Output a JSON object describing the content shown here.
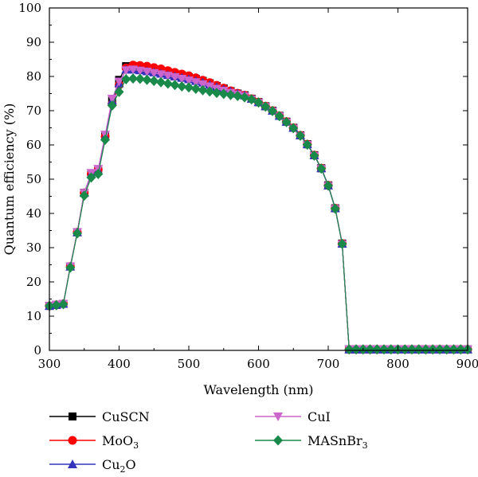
{
  "chart_data": {
    "type": "line",
    "xlabel": "Wavelength (nm)",
    "ylabel": "Quantum efficiency (%)",
    "xlim": [
      300,
      900
    ],
    "ylim": [
      0,
      100
    ],
    "x_ticks": [
      "300",
      "400",
      "500",
      "600",
      "700",
      "800",
      "900"
    ],
    "y_ticks": [
      "0",
      "10",
      "20",
      "30",
      "40",
      "50",
      "60",
      "70",
      "80",
      "90",
      "100"
    ],
    "grid": false,
    "legend_position": "bottom",
    "x": [
      300,
      310,
      320,
      330,
      340,
      350,
      360,
      370,
      380,
      390,
      400,
      410,
      420,
      430,
      440,
      450,
      460,
      470,
      480,
      490,
      500,
      510,
      520,
      530,
      540,
      550,
      560,
      570,
      580,
      590,
      600,
      610,
      620,
      630,
      640,
      650,
      660,
      670,
      680,
      690,
      700,
      710,
      720,
      730,
      740,
      750,
      760,
      770,
      780,
      790,
      800,
      810,
      820,
      830,
      840,
      850,
      860,
      870,
      880,
      890,
      900
    ],
    "series": [
      {
        "name": "CuSCN",
        "sub": "",
        "color": "#000000",
        "marker": "square",
        "values": [
          13,
          13.3,
          13.6,
          24.5,
          34.5,
          46,
          51.5,
          52.5,
          62.5,
          73,
          79,
          83,
          83,
          82.7,
          82.4,
          82.1,
          81.7,
          81.2,
          80.8,
          80.3,
          79.8,
          79.3,
          78.7,
          78,
          77.2,
          76.5,
          75.7,
          75,
          74.5,
          73.5,
          72.5,
          71.3,
          70,
          68.5,
          66.8,
          65,
          62.8,
          60.2,
          57,
          53.2,
          48.2,
          41.5,
          31.2,
          0.3,
          0.3,
          0.3,
          0.3,
          0.3,
          0.3,
          0.3,
          0.3,
          0.3,
          0.3,
          0.3,
          0.3,
          0.3,
          0.3,
          0.3,
          0.3,
          0.3,
          0.3
        ]
      },
      {
        "name": "MoO",
        "sub": "3",
        "color": "#ff0000",
        "marker": "circle",
        "values": [
          13,
          13.3,
          13.6,
          24.5,
          34.5,
          46,
          51.5,
          52.8,
          62.5,
          72,
          77.5,
          82.5,
          83.3,
          83.2,
          83,
          82.6,
          82.2,
          81.7,
          81.2,
          80.7,
          80.2,
          79.6,
          78.9,
          78.2,
          77.4,
          76.6,
          75.8,
          75.1,
          74.5,
          73.5,
          72.5,
          71.3,
          70,
          68.5,
          66.8,
          65,
          62.8,
          60.2,
          57,
          53.2,
          48.2,
          41.5,
          31.2,
          0.3,
          0.3,
          0.3,
          0.3,
          0.3,
          0.3,
          0.3,
          0.3,
          0.3,
          0.3,
          0.3,
          0.3,
          0.3,
          0.3,
          0.3,
          0.3,
          0.3,
          0.3
        ]
      },
      {
        "name": "Cu",
        "sub": "2",
        "after": "O",
        "color": "#3333bb",
        "marker": "triangle-up",
        "values": [
          13,
          13.3,
          13.6,
          24.5,
          34.5,
          46,
          51.5,
          52.5,
          62.5,
          73,
          78,
          82,
          82,
          81.8,
          81.5,
          81.2,
          80.8,
          80.4,
          80,
          79.6,
          79.2,
          78.7,
          78.2,
          77.6,
          76.9,
          76.2,
          75.6,
          75,
          74.5,
          73.5,
          72.5,
          71.3,
          70,
          68.5,
          66.8,
          65,
          62.8,
          60.2,
          57,
          53.2,
          48.2,
          41.5,
          31.2,
          0.3,
          0.3,
          0.3,
          0.3,
          0.3,
          0.3,
          0.3,
          0.3,
          0.3,
          0.3,
          0.3,
          0.3,
          0.3,
          0.3,
          0.3,
          0.3,
          0.3,
          0.3
        ]
      },
      {
        "name": "CuI",
        "sub": "",
        "color": "#cc66cc",
        "marker": "triangle-down",
        "values": [
          13,
          13.3,
          13.6,
          24.5,
          34.5,
          46,
          51.8,
          53,
          63,
          73.5,
          78.5,
          81.8,
          82,
          81.7,
          81.4,
          81,
          80.6,
          80.2,
          79.8,
          79.3,
          78.8,
          78.3,
          77.7,
          77.1,
          76.4,
          75.8,
          75.2,
          74.7,
          74.2,
          73.3,
          72.3,
          71.1,
          69.8,
          68.3,
          66.6,
          64.8,
          62.6,
          60,
          56.8,
          53,
          48,
          41.3,
          31,
          0.3,
          0.3,
          0.3,
          0.3,
          0.3,
          0.3,
          0.3,
          0.3,
          0.3,
          0.3,
          0.3,
          0.3,
          0.3,
          0.3,
          0.3,
          0.3,
          0.3,
          0.3
        ]
      },
      {
        "name": "MASnBr",
        "sub": "3",
        "color": "#1a8a4a",
        "marker": "diamond",
        "values": [
          13,
          13.2,
          13.5,
          24.2,
          34.2,
          45.2,
          50.5,
          51.5,
          61.5,
          71.5,
          75.5,
          79.2,
          79.4,
          79.3,
          79,
          78.7,
          78.3,
          77.9,
          77.5,
          77.1,
          76.8,
          76.4,
          76,
          75.6,
          75.2,
          74.9,
          74.6,
          74.3,
          73.9,
          73.3,
          72.4,
          71.2,
          69.9,
          68.4,
          66.7,
          64.9,
          62.7,
          60.1,
          56.9,
          53.1,
          48.1,
          41.4,
          31.1,
          0.3,
          0.3,
          0.3,
          0.3,
          0.3,
          0.3,
          0.3,
          0.3,
          0.3,
          0.3,
          0.3,
          0.3,
          0.3,
          0.3,
          0.3,
          0.3,
          0.3,
          0.3
        ]
      }
    ]
  }
}
